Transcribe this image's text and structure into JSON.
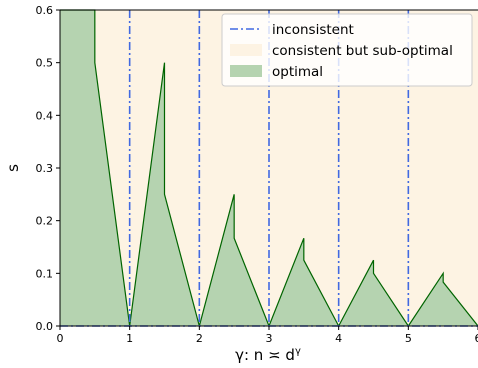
{
  "chart_data": {
    "type": "area",
    "xlabel": "γ: n ≍ d^γ",
    "xlabel_base": "γ: n ≍ d",
    "xlabel_sup": "γ",
    "ylabel": "s",
    "xlim": [
      0,
      6
    ],
    "ylim": [
      0,
      0.6
    ],
    "x_ticks": [
      0,
      1,
      2,
      3,
      4,
      5,
      6
    ],
    "y_ticks": [
      0.0,
      0.1,
      0.2,
      0.3,
      0.4,
      0.5,
      0.6
    ],
    "x_tick_labels": [
      "0",
      "1",
      "2",
      "3",
      "4",
      "5",
      "6"
    ],
    "y_tick_labels": [
      "0.0",
      "0.1",
      "0.2",
      "0.3",
      "0.4",
      "0.5",
      "0.6"
    ],
    "grid": false,
    "legend_position": "top-right",
    "series": [
      {
        "name": "inconsistent",
        "kind": "vertical-lines",
        "x": [
          1,
          2,
          3,
          4,
          5
        ],
        "also_baseline": true,
        "color": "#4169e1"
      },
      {
        "name": "consistent but sub-optimal",
        "kind": "background-region",
        "color": "#fdf3e3"
      },
      {
        "name": "optimal",
        "kind": "filled-area",
        "fill_color": "#b5d3b0",
        "line_color": "#006400",
        "points": [
          [
            0,
            0.6
          ],
          [
            0.5,
            0.6
          ],
          [
            0.5,
            0.5
          ],
          [
            1,
            0
          ],
          [
            1.5,
            0.5
          ],
          [
            1.5,
            0.25
          ],
          [
            2,
            0
          ],
          [
            2.5,
            0.25
          ],
          [
            2.5,
            0.1667
          ],
          [
            3,
            0
          ],
          [
            3.5,
            0.1667
          ],
          [
            3.5,
            0.125
          ],
          [
            4,
            0
          ],
          [
            4.5,
            0.125
          ],
          [
            4.5,
            0.1
          ],
          [
            5,
            0
          ],
          [
            5.5,
            0.1
          ],
          [
            5.5,
            0.0833
          ],
          [
            6,
            0
          ]
        ]
      }
    ]
  }
}
